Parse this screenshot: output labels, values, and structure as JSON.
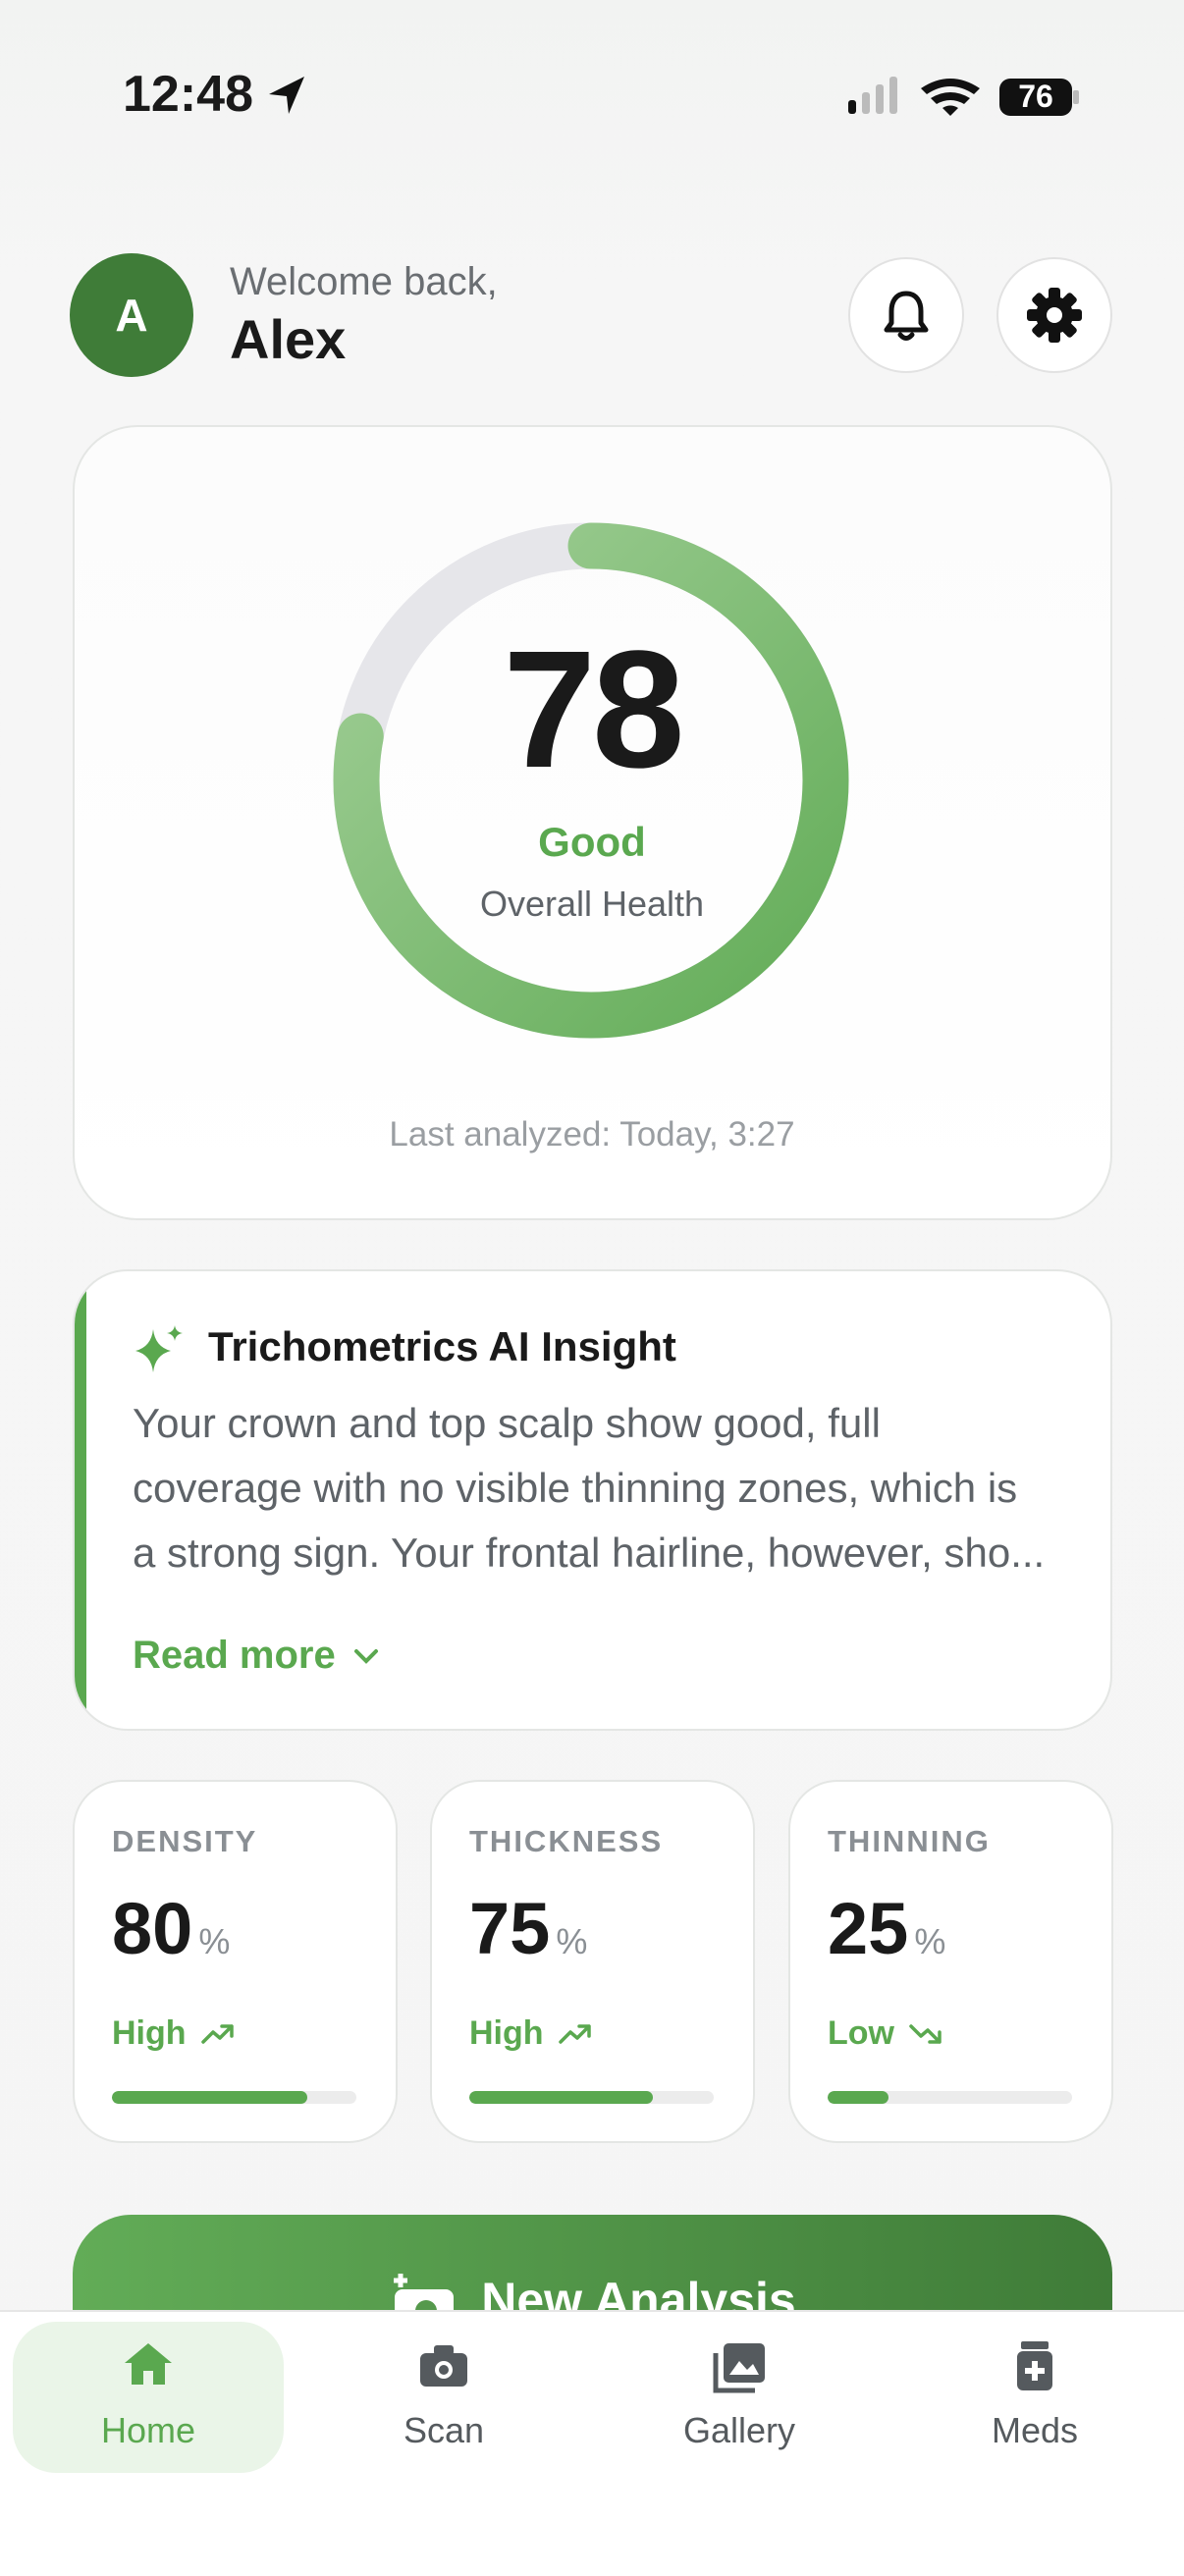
{
  "status_bar": {
    "time": "12:48",
    "battery": "76"
  },
  "header": {
    "avatar": "A",
    "greeting": "Welcome back,",
    "name": "Alex"
  },
  "score": {
    "value": 78,
    "max": 100,
    "status": "Good",
    "label": "Overall Health",
    "last_analyzed": "Last analyzed: Today, 3:27"
  },
  "insight": {
    "title": "Trichometrics AI Insight",
    "lines": [
      "Your crown and top scalp show good, full",
      "coverage with no visible thinning zones, which is",
      "a strong sign. Your frontal hairline, however, sho..."
    ],
    "read_more": "Read more"
  },
  "metrics": {
    "max": 100,
    "items": [
      {
        "label": "DENSITY",
        "value": 80,
        "unit": "%",
        "status": "High",
        "trend": "up"
      },
      {
        "label": "THICKNESS",
        "value": 75,
        "unit": "%",
        "status": "High",
        "trend": "up"
      },
      {
        "label": "THINNING",
        "value": 25,
        "unit": "%",
        "status": "Low",
        "trend": "down"
      }
    ]
  },
  "action": {
    "label": "New Analysis"
  },
  "tabs": [
    {
      "label": "Home",
      "selected": true
    },
    {
      "label": "Scan",
      "selected": false
    },
    {
      "label": "Gallery",
      "selected": false
    },
    {
      "label": "Meds",
      "selected": false
    }
  ]
}
